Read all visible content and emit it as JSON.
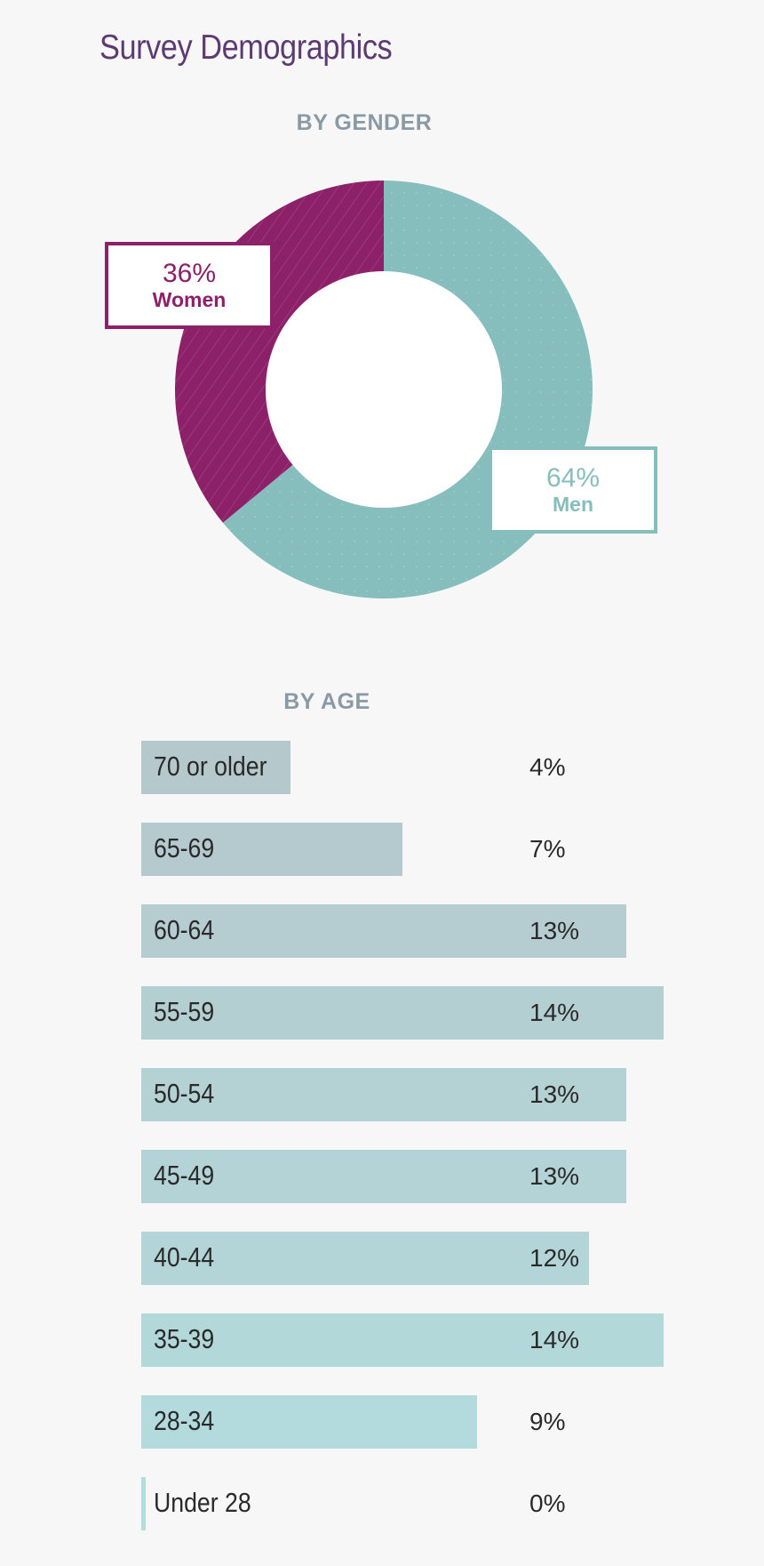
{
  "page_title": "Survey Demographics",
  "gender_heading": "BY GENDER",
  "age_heading": "BY AGE",
  "colors": {
    "women": "#8c2069",
    "men": "#86bdbd",
    "title": "#5e3a73",
    "heading": "#8a9aa5",
    "age_bar_top": "#b5c8cc",
    "age_bar_bottom": "#b3dcde"
  },
  "chart_data": [
    {
      "type": "pie",
      "variant": "donut",
      "title": "BY GENDER",
      "slices": [
        {
          "label": "Men",
          "value": 64,
          "display": "64%"
        },
        {
          "label": "Women",
          "value": 36,
          "display": "36%"
        }
      ]
    },
    {
      "type": "bar",
      "orientation": "horizontal",
      "title": "BY AGE",
      "categories": [
        "70 or older",
        "65-69",
        "60-64",
        "55-59",
        "50-54",
        "45-49",
        "40-44",
        "35-39",
        "28-34",
        "Under 28"
      ],
      "values": [
        4,
        7,
        13,
        14,
        13,
        13,
        12,
        14,
        9,
        0
      ],
      "display": [
        "4%",
        "7%",
        "13%",
        "14%",
        "13%",
        "13%",
        "12%",
        "14%",
        "9%",
        "0%"
      ]
    }
  ]
}
